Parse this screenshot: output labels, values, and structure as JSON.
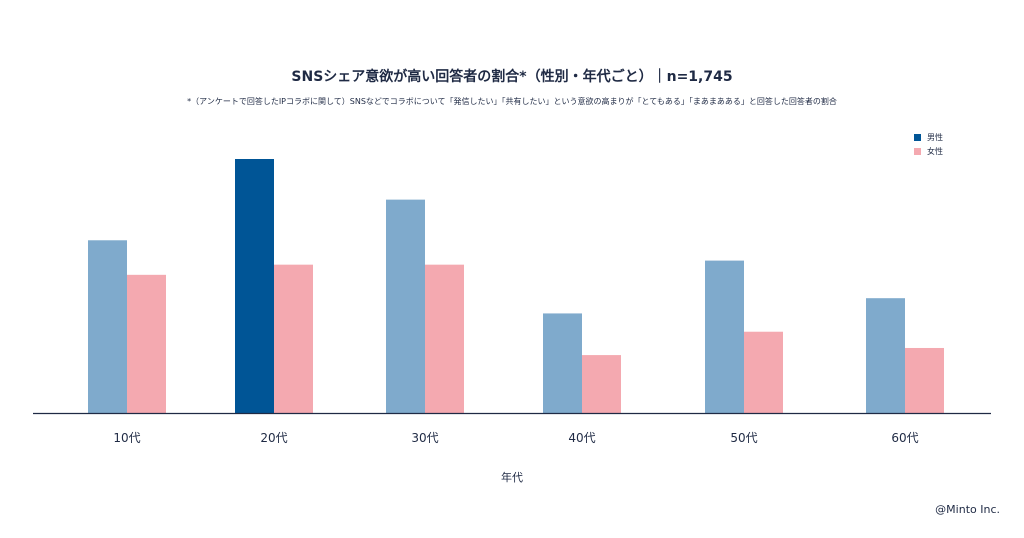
{
  "chart_data": {
    "type": "bar",
    "title": "SNSシェア意欲が高い回答者の割合*（性別・年代ごと）｜n=1,745",
    "subtitle": "*（アンケートで回答したIPコラボに関して）SNSなどでコラボについて「発信したい」「共有したい」という意欲の高まりが「とてもある」「まあまあある」と回答した回答者の割合",
    "xlabel": "年代",
    "ylabel": "",
    "categories": [
      "10代",
      "20代",
      "30代",
      "40代",
      "50代",
      "60代"
    ],
    "series": [
      {
        "name": "男性",
        "values": [
          17,
          25,
          21,
          9.8,
          15,
          11.3
        ]
      },
      {
        "name": "女性",
        "values": [
          13.6,
          14.6,
          14.6,
          5.7,
          8,
          6.4
        ]
      }
    ],
    "highlight": {
      "series": 0,
      "category": 1
    },
    "ylim": [
      0,
      25
    ],
    "grid": false,
    "legend_position": "top-right",
    "colors": {
      "male": "#7faacc",
      "male_highlight": "#005596",
      "female": "#f4a9b0",
      "axis": "#1f2a44"
    }
  },
  "credit": "@Minto Inc."
}
